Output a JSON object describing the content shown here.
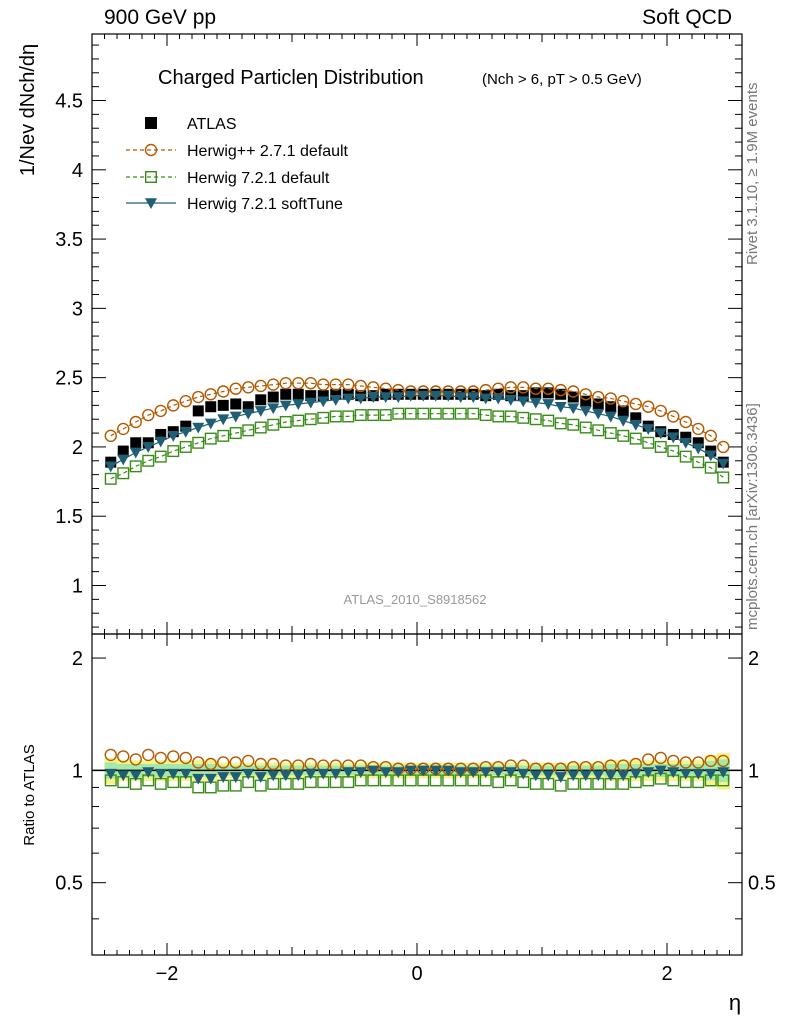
{
  "header": {
    "left": "900 GeV pp",
    "right": "Soft QCD"
  },
  "side_labels": {
    "top": "Rivet 3.1.10, ≥ 1.9M events",
    "bottom": "mcplots.cern.ch [arXiv:1306.3436]"
  },
  "chart_data": [
    {
      "type": "scatter",
      "title": "Charged Particleη Distribution",
      "subtitle": "(Nch > 6, pT > 0.5 GeV)",
      "ylabel": "1/Nev dNch/dη",
      "xlabel": "η",
      "watermark": "ATLAS_2010_S8918562",
      "xlim": [
        -2.6,
        2.6
      ],
      "ylim": [
        0.65,
        4.98
      ],
      "yticks": [
        "1",
        "1.5",
        "2",
        "2.5",
        "3",
        "3.5",
        "4",
        "4.5"
      ],
      "legend_position": "top-left",
      "x": [
        -2.45,
        -2.35,
        -2.25,
        -2.15,
        -2.05,
        -1.95,
        -1.85,
        -1.75,
        -1.65,
        -1.55,
        -1.45,
        -1.35,
        -1.25,
        -1.15,
        -1.05,
        -0.95,
        -0.85,
        -0.75,
        -0.65,
        -0.55,
        -0.45,
        -0.35,
        -0.25,
        -0.15,
        -0.05,
        0.05,
        0.15,
        0.25,
        0.35,
        0.45,
        0.55,
        0.65,
        0.75,
        0.85,
        0.95,
        1.05,
        1.15,
        1.25,
        1.35,
        1.45,
        1.55,
        1.65,
        1.75,
        1.85,
        1.95,
        2.05,
        2.15,
        2.25,
        2.35,
        2.45
      ],
      "series": [
        {
          "name": "ATLAS",
          "color": "#000000",
          "marker": "filled-square",
          "values": [
            1.89,
            1.97,
            2.03,
            2.03,
            2.09,
            2.11,
            2.15,
            2.26,
            2.29,
            2.3,
            2.31,
            2.29,
            2.34,
            2.36,
            2.38,
            2.38,
            2.37,
            2.37,
            2.38,
            2.38,
            2.37,
            2.37,
            2.38,
            2.38,
            2.38,
            2.38,
            2.38,
            2.38,
            2.38,
            2.38,
            2.37,
            2.38,
            2.37,
            2.37,
            2.39,
            2.39,
            2.38,
            2.36,
            2.33,
            2.31,
            2.29,
            2.26,
            2.21,
            2.15,
            2.11,
            2.09,
            2.07,
            2.03,
            1.97,
            1.89
          ]
        },
        {
          "name": "Herwig++ 2.7.1 default",
          "color": "#b35a00",
          "marker": "open-circle",
          "line": "dashed",
          "values": [
            2.08,
            2.13,
            2.18,
            2.23,
            2.26,
            2.3,
            2.33,
            2.36,
            2.38,
            2.4,
            2.42,
            2.43,
            2.44,
            2.45,
            2.46,
            2.46,
            2.46,
            2.45,
            2.45,
            2.45,
            2.44,
            2.43,
            2.42,
            2.41,
            2.4,
            2.4,
            2.4,
            2.4,
            2.4,
            2.4,
            2.41,
            2.42,
            2.43,
            2.43,
            2.42,
            2.42,
            2.41,
            2.4,
            2.38,
            2.36,
            2.35,
            2.33,
            2.31,
            2.29,
            2.26,
            2.22,
            2.18,
            2.13,
            2.08,
            2.0
          ]
        },
        {
          "name": "Herwig 7.2.1 default",
          "color": "#3a8c1a",
          "marker": "open-square",
          "line": "dashed",
          "values": [
            1.77,
            1.81,
            1.86,
            1.9,
            1.93,
            1.97,
            2.0,
            2.03,
            2.06,
            2.08,
            2.1,
            2.12,
            2.14,
            2.16,
            2.18,
            2.19,
            2.2,
            2.21,
            2.22,
            2.22,
            2.23,
            2.23,
            2.23,
            2.24,
            2.24,
            2.24,
            2.24,
            2.24,
            2.24,
            2.24,
            2.23,
            2.22,
            2.22,
            2.21,
            2.2,
            2.19,
            2.17,
            2.16,
            2.14,
            2.12,
            2.1,
            2.08,
            2.06,
            2.03,
            2.0,
            1.97,
            1.93,
            1.89,
            1.85,
            1.78
          ]
        },
        {
          "name": "Herwig 7.2.1 softTune",
          "color": "#1f5e73",
          "marker": "filled-triangle-down",
          "line": "solid",
          "values": [
            1.86,
            1.91,
            1.96,
            2.0,
            2.04,
            2.08,
            2.11,
            2.14,
            2.17,
            2.2,
            2.22,
            2.24,
            2.26,
            2.28,
            2.3,
            2.31,
            2.32,
            2.33,
            2.34,
            2.35,
            2.35,
            2.36,
            2.36,
            2.36,
            2.37,
            2.37,
            2.37,
            2.37,
            2.36,
            2.36,
            2.35,
            2.35,
            2.34,
            2.33,
            2.32,
            2.31,
            2.29,
            2.28,
            2.26,
            2.24,
            2.22,
            2.19,
            2.16,
            2.13,
            2.1,
            2.07,
            2.03,
            1.99,
            1.94,
            1.88
          ]
        }
      ]
    },
    {
      "type": "scatter",
      "ylabel": "Ratio to ATLAS",
      "xlabel": "η",
      "xlim": [
        -2.6,
        2.6
      ],
      "ylim": [
        0.32,
        2.32
      ],
      "xticks": [
        "−2",
        "0",
        "2"
      ],
      "yticks": [
        "0.5",
        "1",
        "2"
      ],
      "reference_line": 1,
      "band_half_width": [
        0.05,
        0.04,
        0.04,
        0.04,
        0.04,
        0.04,
        0.04,
        0.04,
        0.04,
        0.03,
        0.03,
        0.03,
        0.03,
        0.03,
        0.03,
        0.03,
        0.03,
        0.03,
        0.03,
        0.03,
        0.03,
        0.03,
        0.03,
        0.03,
        0.03,
        0.03,
        0.03,
        0.03,
        0.03,
        0.03,
        0.03,
        0.03,
        0.03,
        0.03,
        0.03,
        0.03,
        0.03,
        0.03,
        0.03,
        0.03,
        0.04,
        0.04,
        0.04,
        0.04,
        0.04,
        0.04,
        0.04,
        0.04,
        0.06,
        0.07
      ],
      "series": [
        {
          "name": "Herwig++ 2.7.1 default",
          "color": "#b35a00",
          "marker": "open-circle",
          "values": [
            1.1,
            1.09,
            1.07,
            1.1,
            1.08,
            1.09,
            1.08,
            1.05,
            1.04,
            1.05,
            1.05,
            1.06,
            1.04,
            1.04,
            1.03,
            1.03,
            1.04,
            1.03,
            1.03,
            1.03,
            1.03,
            1.02,
            1.02,
            1.01,
            1.01,
            1.01,
            1.01,
            1.01,
            1.01,
            1.01,
            1.02,
            1.02,
            1.03,
            1.03,
            1.01,
            1.01,
            1.01,
            1.02,
            1.02,
            1.02,
            1.03,
            1.03,
            1.04,
            1.07,
            1.08,
            1.06,
            1.05,
            1.05,
            1.06,
            1.06
          ]
        },
        {
          "name": "Herwig 7.2.1 default",
          "color": "#3a8c1a",
          "marker": "open-square",
          "values": [
            0.94,
            0.93,
            0.92,
            0.94,
            0.92,
            0.93,
            0.93,
            0.9,
            0.9,
            0.91,
            0.91,
            0.93,
            0.91,
            0.92,
            0.92,
            0.92,
            0.93,
            0.93,
            0.93,
            0.93,
            0.94,
            0.94,
            0.94,
            0.94,
            0.94,
            0.94,
            0.94,
            0.94,
            0.94,
            0.94,
            0.94,
            0.93,
            0.94,
            0.93,
            0.92,
            0.92,
            0.91,
            0.92,
            0.92,
            0.92,
            0.92,
            0.92,
            0.93,
            0.94,
            0.95,
            0.94,
            0.93,
            0.93,
            0.94,
            0.94
          ]
        },
        {
          "name": "Herwig 7.2.1 softTune",
          "color": "#1f5e73",
          "marker": "filled-triangle-down",
          "values": [
            0.98,
            0.97,
            0.97,
            0.99,
            0.98,
            0.98,
            0.98,
            0.95,
            0.95,
            0.96,
            0.96,
            0.98,
            0.96,
            0.97,
            0.97,
            0.97,
            0.98,
            0.98,
            0.98,
            0.99,
            0.99,
            1.0,
            0.99,
            0.99,
            1.0,
            1.0,
            1.0,
            1.0,
            0.99,
            0.99,
            0.99,
            0.99,
            0.99,
            0.98,
            0.97,
            0.97,
            0.96,
            0.97,
            0.97,
            0.97,
            0.97,
            0.97,
            0.98,
            0.99,
            1.0,
            0.99,
            0.98,
            0.98,
            0.98,
            0.99
          ]
        }
      ]
    }
  ]
}
